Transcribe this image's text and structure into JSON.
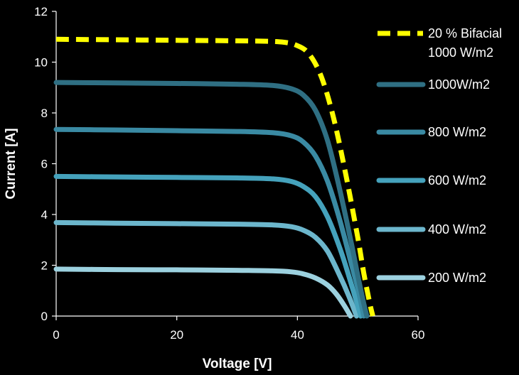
{
  "chart_data": {
    "type": "line",
    "xlabel": "Voltage [V]",
    "ylabel": "Current [A]",
    "xlim": [
      0,
      60
    ],
    "ylim": [
      0,
      12
    ],
    "xticks": [
      "0",
      "20",
      "40",
      "60"
    ],
    "yticks": [
      "0",
      "2",
      "4",
      "6",
      "8",
      "10",
      "12"
    ],
    "grid": false,
    "legend_position": "right",
    "series": [
      {
        "name": "20 % Bifacial 1000 W/m2",
        "legend_lines": [
          "20 % Bifacial",
          "1000 W/m2"
        ],
        "color": "#ffff00",
        "dashed": true,
        "isc": 10.9,
        "voc": 52.5,
        "points": [
          [
            0,
            10.9
          ],
          [
            10,
            10.88
          ],
          [
            20,
            10.86
          ],
          [
            30,
            10.84
          ],
          [
            37,
            10.8
          ],
          [
            40,
            10.65
          ],
          [
            42,
            10.3
          ],
          [
            44,
            9.4
          ],
          [
            46,
            7.8
          ],
          [
            48,
            5.6
          ],
          [
            50,
            3.1
          ],
          [
            51,
            1.7
          ],
          [
            52,
            0.5
          ],
          [
            52.5,
            0
          ]
        ]
      },
      {
        "name": "1000W/m2",
        "color": "#2f6f83",
        "dashed": false,
        "isc": 9.2,
        "voc": 51.5,
        "points": [
          [
            0,
            9.2
          ],
          [
            10,
            9.18
          ],
          [
            20,
            9.16
          ],
          [
            30,
            9.13
          ],
          [
            36,
            9.08
          ],
          [
            39,
            8.95
          ],
          [
            41,
            8.7
          ],
          [
            43,
            8.1
          ],
          [
            45,
            6.9
          ],
          [
            47,
            5.0
          ],
          [
            49,
            2.8
          ],
          [
            50,
            1.6
          ],
          [
            51,
            0.5
          ],
          [
            51.5,
            0
          ]
        ]
      },
      {
        "name": "800 W/m2",
        "color": "#3a8aa3",
        "dashed": false,
        "isc": 7.35,
        "voc": 51.0,
        "points": [
          [
            0,
            7.35
          ],
          [
            10,
            7.33
          ],
          [
            20,
            7.3
          ],
          [
            30,
            7.27
          ],
          [
            36,
            7.22
          ],
          [
            39,
            7.1
          ],
          [
            41,
            6.85
          ],
          [
            43,
            6.3
          ],
          [
            45,
            5.3
          ],
          [
            47,
            3.8
          ],
          [
            49,
            2.0
          ],
          [
            50,
            1.1
          ],
          [
            51,
            0
          ]
        ]
      },
      {
        "name": "600 W/m2",
        "color": "#45a2bc",
        "dashed": false,
        "isc": 5.5,
        "voc": 50.5,
        "points": [
          [
            0,
            5.5
          ],
          [
            10,
            5.48
          ],
          [
            20,
            5.46
          ],
          [
            30,
            5.44
          ],
          [
            36,
            5.4
          ],
          [
            39,
            5.3
          ],
          [
            41,
            5.1
          ],
          [
            43,
            4.7
          ],
          [
            45,
            3.9
          ],
          [
            47,
            2.7
          ],
          [
            48.5,
            1.6
          ],
          [
            50,
            0.4
          ],
          [
            50.5,
            0
          ]
        ]
      },
      {
        "name": "400 W/m2",
        "color": "#6cb6cc",
        "dashed": false,
        "isc": 3.68,
        "voc": 49.8,
        "points": [
          [
            0,
            3.68
          ],
          [
            10,
            3.66
          ],
          [
            20,
            3.64
          ],
          [
            30,
            3.62
          ],
          [
            36,
            3.59
          ],
          [
            39,
            3.52
          ],
          [
            41,
            3.38
          ],
          [
            43,
            3.1
          ],
          [
            45,
            2.55
          ],
          [
            47,
            1.6
          ],
          [
            48.5,
            0.8
          ],
          [
            49.8,
            0
          ]
        ]
      },
      {
        "name": "200 W/m2",
        "color": "#9cd1df",
        "dashed": false,
        "isc": 1.85,
        "voc": 48.8,
        "points": [
          [
            0,
            1.85
          ],
          [
            10,
            1.83
          ],
          [
            20,
            1.82
          ],
          [
            30,
            1.8
          ],
          [
            36,
            1.78
          ],
          [
            39,
            1.74
          ],
          [
            41,
            1.66
          ],
          [
            43,
            1.5
          ],
          [
            45,
            1.22
          ],
          [
            46.5,
            0.85
          ],
          [
            47.8,
            0.4
          ],
          [
            48.8,
            0
          ]
        ]
      }
    ]
  }
}
